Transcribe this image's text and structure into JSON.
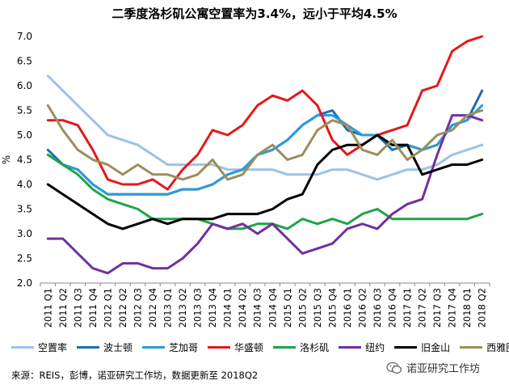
{
  "chart_data": {
    "type": "line",
    "title": "二季度洛杉矶公寓空置率为3.4%，远小于平均4.5%",
    "ylabel": "%",
    "xlabel": "",
    "ylim": [
      2.0,
      7.0
    ],
    "yticks": [
      "2.0",
      "2.5",
      "3.0",
      "3.5",
      "4.0",
      "4.5",
      "5.0",
      "5.5",
      "6.0",
      "6.5",
      "7.0"
    ],
    "categories": [
      "2011 Q1",
      "2011 Q2",
      "2011 Q3",
      "2011 Q4",
      "2012 Q1",
      "2012 Q2",
      "2012 Q3",
      "2012 Q4",
      "2013 Q1",
      "2013 Q2",
      "2013 Q3",
      "2013 Q4",
      "2014 Q1",
      "2014 Q2",
      "2014 Q3",
      "2014 Q4",
      "2015 Q1",
      "2015 Q2",
      "2015 Q3",
      "2015 Q4",
      "2016 Q1",
      "2016 Q2",
      "2016 Q3",
      "2016 Q4",
      "2017 Q1",
      "2017 Q2",
      "2017 Q3",
      "2017 Q4",
      "2018 Q1",
      "2018 Q2"
    ],
    "series": [
      {
        "name": "空置率",
        "color": "#9DC3E6",
        "values": [
          6.2,
          5.9,
          5.6,
          5.3,
          5.0,
          4.9,
          4.8,
          4.6,
          4.4,
          4.4,
          4.4,
          4.4,
          4.3,
          4.3,
          4.3,
          4.3,
          4.2,
          4.2,
          4.2,
          4.3,
          4.3,
          4.2,
          4.1,
          4.2,
          4.3,
          4.3,
          4.4,
          4.6,
          4.7,
          4.8
        ]
      },
      {
        "name": "波士顿",
        "color": "#1F6CB0",
        "values": [
          4.7,
          4.4,
          4.3,
          4.0,
          3.8,
          3.8,
          3.8,
          3.8,
          3.8,
          3.9,
          3.9,
          4.0,
          4.2,
          4.3,
          4.6,
          4.7,
          4.9,
          5.2,
          5.4,
          5.5,
          5.1,
          5.0,
          5.0,
          4.7,
          4.8,
          4.7,
          4.8,
          5.2,
          5.3,
          5.9
        ]
      },
      {
        "name": "芝加哥",
        "color": "#2E9BD6",
        "values": [
          4.6,
          4.4,
          4.3,
          4.0,
          3.8,
          3.8,
          3.8,
          3.8,
          3.8,
          3.9,
          3.9,
          4.0,
          4.2,
          4.3,
          4.6,
          4.7,
          4.9,
          5.2,
          5.4,
          5.4,
          5.2,
          5.0,
          5.0,
          4.8,
          4.8,
          4.7,
          4.8,
          5.2,
          5.3,
          5.6
        ]
      },
      {
        "name": "华盛顿",
        "color": "#E3191C",
        "values": [
          5.3,
          5.3,
          5.2,
          4.7,
          4.1,
          4.0,
          4.0,
          4.1,
          3.9,
          4.3,
          4.6,
          5.1,
          5.0,
          5.2,
          5.6,
          5.8,
          5.7,
          5.9,
          5.6,
          4.9,
          4.6,
          4.8,
          5.0,
          5.1,
          5.2,
          5.9,
          6.0,
          6.7,
          6.9,
          7.0
        ]
      },
      {
        "name": "洛杉矶",
        "color": "#1FA44A",
        "values": [
          4.6,
          4.4,
          4.2,
          3.9,
          3.7,
          3.6,
          3.5,
          3.3,
          3.3,
          3.3,
          3.3,
          3.2,
          3.1,
          3.1,
          3.2,
          3.2,
          3.1,
          3.3,
          3.2,
          3.3,
          3.2,
          3.4,
          3.5,
          3.3,
          3.3,
          3.3,
          3.3,
          3.3,
          3.3,
          3.4
        ]
      },
      {
        "name": "纽约",
        "color": "#7030A0",
        "values": [
          2.9,
          2.9,
          2.6,
          2.3,
          2.2,
          2.4,
          2.4,
          2.3,
          2.3,
          2.5,
          2.8,
          3.2,
          3.1,
          3.2,
          3.0,
          3.2,
          2.9,
          2.6,
          2.7,
          2.8,
          3.1,
          3.2,
          3.1,
          3.4,
          3.6,
          3.7,
          4.6,
          5.4,
          5.4,
          5.3
        ]
      },
      {
        "name": "旧金山",
        "color": "#000000",
        "values": [
          4.0,
          3.8,
          3.6,
          3.4,
          3.2,
          3.1,
          3.2,
          3.3,
          3.2,
          3.3,
          3.3,
          3.3,
          3.4,
          3.4,
          3.4,
          3.5,
          3.7,
          3.8,
          4.4,
          4.7,
          4.8,
          4.8,
          5.0,
          4.8,
          4.8,
          4.2,
          4.3,
          4.4,
          4.4,
          4.5
        ]
      },
      {
        "name": "西雅图",
        "color": "#9C8E5C",
        "values": [
          5.6,
          5.1,
          4.7,
          4.5,
          4.4,
          4.2,
          4.4,
          4.2,
          4.2,
          4.1,
          4.2,
          4.5,
          4.1,
          4.2,
          4.6,
          4.8,
          4.5,
          4.6,
          5.1,
          5.3,
          5.2,
          4.7,
          4.6,
          4.9,
          4.5,
          4.7,
          5.0,
          5.1,
          5.4,
          5.5
        ]
      }
    ]
  },
  "footer": {
    "source": "来源：REIS，彭博，诺亚研究工作坊，数据更新至 2018Q2",
    "watermark": "诺亚研究工作坊"
  }
}
